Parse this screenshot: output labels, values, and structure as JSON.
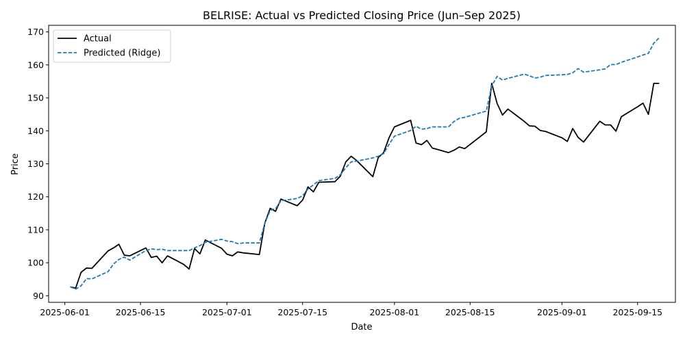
{
  "chart_data": {
    "type": "line",
    "title": "BELRISE: Actual vs Predicted Closing Price (Jun–Sep 2025)",
    "xlabel": "Date",
    "ylabel": "Price",
    "xlim": [
      "2025-05-29",
      "2025-09-22"
    ],
    "ylim": [
      88,
      172
    ],
    "x_ticks": [
      "2025-06-01",
      "2025-06-15",
      "2025-07-01",
      "2025-07-15",
      "2025-08-01",
      "2025-08-15",
      "2025-09-01",
      "2025-09-15"
    ],
    "y_ticks": [
      90,
      100,
      110,
      120,
      130,
      140,
      150,
      160,
      170
    ],
    "grid": false,
    "legend_position": "upper-left",
    "series": [
      {
        "name": "Actual",
        "color": "#000000",
        "style": "solid",
        "points": [
          [
            "2025-06-02",
            92.7
          ],
          [
            "2025-06-03",
            92.3
          ],
          [
            "2025-06-04",
            97.1
          ],
          [
            "2025-06-05",
            98.4
          ],
          [
            "2025-06-06",
            98.3
          ],
          [
            "2025-06-09",
            103.6
          ],
          [
            "2025-06-10",
            104.5
          ],
          [
            "2025-06-11",
            105.6
          ],
          [
            "2025-06-12",
            102.3
          ],
          [
            "2025-06-13",
            102.1
          ],
          [
            "2025-06-16",
            104.5
          ],
          [
            "2025-06-17",
            101.6
          ],
          [
            "2025-06-18",
            102.0
          ],
          [
            "2025-06-19",
            100.0
          ],
          [
            "2025-06-20",
            102.1
          ],
          [
            "2025-06-23",
            99.5
          ],
          [
            "2025-06-24",
            98.1
          ],
          [
            "2025-06-25",
            104.3
          ],
          [
            "2025-06-26",
            102.7
          ],
          [
            "2025-06-27",
            106.9
          ],
          [
            "2025-06-30",
            104.4
          ],
          [
            "2025-07-01",
            102.6
          ],
          [
            "2025-07-02",
            102.1
          ],
          [
            "2025-07-03",
            103.3
          ],
          [
            "2025-07-04",
            103.0
          ],
          [
            "2025-07-07",
            102.5
          ],
          [
            "2025-07-08",
            112.0
          ],
          [
            "2025-07-09",
            116.5
          ],
          [
            "2025-07-10",
            115.6
          ],
          [
            "2025-07-11",
            119.3
          ],
          [
            "2025-07-14",
            117.3
          ],
          [
            "2025-07-15",
            119.0
          ],
          [
            "2025-07-16",
            123.0
          ],
          [
            "2025-07-17",
            121.5
          ],
          [
            "2025-07-18",
            124.4
          ],
          [
            "2025-07-21",
            124.6
          ],
          [
            "2025-07-22",
            126.3
          ],
          [
            "2025-07-23",
            130.6
          ],
          [
            "2025-07-24",
            132.3
          ],
          [
            "2025-07-25",
            131.0
          ],
          [
            "2025-07-28",
            126.1
          ],
          [
            "2025-07-29",
            131.9
          ],
          [
            "2025-07-30",
            133.4
          ],
          [
            "2025-07-31",
            137.9
          ],
          [
            "2025-08-01",
            141.2
          ],
          [
            "2025-08-04",
            143.2
          ],
          [
            "2025-08-05",
            136.3
          ],
          [
            "2025-08-06",
            135.8
          ],
          [
            "2025-08-07",
            137.1
          ],
          [
            "2025-08-08",
            134.8
          ],
          [
            "2025-08-11",
            133.4
          ],
          [
            "2025-08-12",
            134.1
          ],
          [
            "2025-08-13",
            135.1
          ],
          [
            "2025-08-14",
            134.6
          ],
          [
            "2025-08-18",
            139.7
          ],
          [
            "2025-08-19",
            154.4
          ],
          [
            "2025-08-20",
            148.3
          ],
          [
            "2025-08-21",
            144.8
          ],
          [
            "2025-08-22",
            146.6
          ],
          [
            "2025-08-25",
            142.9
          ],
          [
            "2025-08-26",
            141.5
          ],
          [
            "2025-08-27",
            141.4
          ],
          [
            "2025-08-28",
            140.1
          ],
          [
            "2025-08-29",
            139.8
          ],
          [
            "2025-09-01",
            137.9
          ],
          [
            "2025-09-02",
            136.8
          ],
          [
            "2025-09-03",
            140.7
          ],
          [
            "2025-09-04",
            138.0
          ],
          [
            "2025-09-05",
            136.6
          ],
          [
            "2025-09-08",
            142.9
          ],
          [
            "2025-09-09",
            141.8
          ],
          [
            "2025-09-10",
            141.8
          ],
          [
            "2025-09-11",
            139.9
          ],
          [
            "2025-09-12",
            144.3
          ],
          [
            "2025-09-15",
            147.3
          ],
          [
            "2025-09-16",
            148.4
          ],
          [
            "2025-09-17",
            145.0
          ],
          [
            "2025-09-18",
            154.4
          ],
          [
            "2025-09-19",
            154.4
          ]
        ]
      },
      {
        "name": "Predicted (Ridge)",
        "color": "#1f77b4",
        "style": "dashed",
        "points": [
          [
            "2025-06-02",
            92.7
          ],
          [
            "2025-06-03",
            92.0
          ],
          [
            "2025-06-04",
            93.0
          ],
          [
            "2025-06-05",
            95.2
          ],
          [
            "2025-06-06",
            95.1
          ],
          [
            "2025-06-09",
            97.3
          ],
          [
            "2025-06-10",
            99.6
          ],
          [
            "2025-06-11",
            101.0
          ],
          [
            "2025-06-12",
            101.7
          ],
          [
            "2025-06-13",
            100.8
          ],
          [
            "2025-06-16",
            103.7
          ],
          [
            "2025-06-17",
            104.2
          ],
          [
            "2025-06-18",
            104.0
          ],
          [
            "2025-06-19",
            104.1
          ],
          [
            "2025-06-20",
            103.7
          ],
          [
            "2025-06-23",
            103.7
          ],
          [
            "2025-06-24",
            103.7
          ],
          [
            "2025-06-25",
            104.5
          ],
          [
            "2025-06-26",
            105.2
          ],
          [
            "2025-06-27",
            106.2
          ],
          [
            "2025-06-30",
            107.1
          ],
          [
            "2025-07-01",
            106.6
          ],
          [
            "2025-07-02",
            106.4
          ],
          [
            "2025-07-03",
            105.8
          ],
          [
            "2025-07-04",
            106.0
          ],
          [
            "2025-07-07",
            106.0
          ],
          [
            "2025-07-08",
            111.9
          ],
          [
            "2025-07-09",
            115.9
          ],
          [
            "2025-07-10",
            116.4
          ],
          [
            "2025-07-11",
            118.8
          ],
          [
            "2025-07-14",
            119.5
          ],
          [
            "2025-07-15",
            120.3
          ],
          [
            "2025-07-16",
            122.4
          ],
          [
            "2025-07-17",
            123.6
          ],
          [
            "2025-07-18",
            124.9
          ],
          [
            "2025-07-21",
            125.6
          ],
          [
            "2025-07-22",
            126.7
          ],
          [
            "2025-07-23",
            128.8
          ],
          [
            "2025-07-24",
            130.6
          ],
          [
            "2025-07-25",
            130.8
          ],
          [
            "2025-07-28",
            131.8
          ],
          [
            "2025-07-29",
            132.3
          ],
          [
            "2025-07-30",
            133.1
          ],
          [
            "2025-07-31",
            135.9
          ],
          [
            "2025-08-01",
            138.4
          ],
          [
            "2025-08-04",
            140.1
          ],
          [
            "2025-08-05",
            141.4
          ],
          [
            "2025-08-06",
            140.5
          ],
          [
            "2025-08-07",
            140.7
          ],
          [
            "2025-08-08",
            141.2
          ],
          [
            "2025-08-11",
            141.2
          ],
          [
            "2025-08-12",
            142.8
          ],
          [
            "2025-08-13",
            143.8
          ],
          [
            "2025-08-14",
            144.1
          ],
          [
            "2025-08-18",
            146.0
          ],
          [
            "2025-08-19",
            153.6
          ],
          [
            "2025-08-20",
            156.5
          ],
          [
            "2025-08-21",
            155.4
          ],
          [
            "2025-08-22",
            155.9
          ],
          [
            "2025-08-25",
            157.2
          ],
          [
            "2025-08-26",
            156.7
          ],
          [
            "2025-08-27",
            156.0
          ],
          [
            "2025-08-28",
            156.3
          ],
          [
            "2025-08-29",
            156.8
          ],
          [
            "2025-09-01",
            157.0
          ],
          [
            "2025-09-02",
            157.1
          ],
          [
            "2025-09-03",
            157.6
          ],
          [
            "2025-09-04",
            158.9
          ],
          [
            "2025-09-05",
            157.8
          ],
          [
            "2025-09-08",
            158.5
          ],
          [
            "2025-09-09",
            158.8
          ],
          [
            "2025-09-10",
            160.1
          ],
          [
            "2025-09-11",
            160.1
          ],
          [
            "2025-09-12",
            160.8
          ],
          [
            "2025-09-15",
            162.4
          ],
          [
            "2025-09-16",
            163.0
          ],
          [
            "2025-09-17",
            163.5
          ],
          [
            "2025-09-18",
            166.6
          ],
          [
            "2025-09-19",
            168.2
          ]
        ]
      }
    ]
  }
}
